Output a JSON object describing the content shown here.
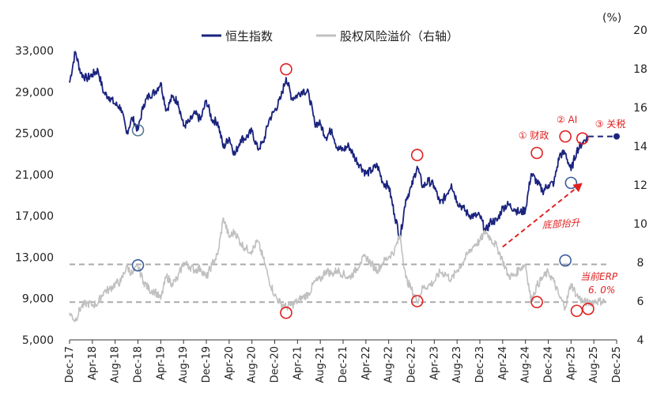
{
  "chart_data": {
    "type": "line",
    "y_unit_right": "(%)",
    "yticks_left": [
      "5,000",
      "9,000",
      "13,000",
      "17,000",
      "21,000",
      "25,000",
      "29,000",
      "33,000"
    ],
    "yticks_right": [
      "4",
      "6",
      "8",
      "10",
      "12",
      "14",
      "16",
      "18",
      "20"
    ],
    "ylim_left": [
      5000,
      35000
    ],
    "ylim_right": [
      4,
      20
    ],
    "x_ticks": [
      "Dec-17",
      "Apr-18",
      "Aug-18",
      "Dec-18",
      "Apr-19",
      "Aug-19",
      "Dec-19",
      "Apr-20",
      "Aug-20",
      "Dec-20",
      "Apr-21",
      "Aug-21",
      "Dec-21",
      "Apr-22",
      "Aug-22",
      "Dec-22",
      "Apr-23",
      "Aug-23",
      "Dec-23",
      "Apr-24",
      "Aug-24",
      "Dec-24",
      "Apr-25",
      "Aug-25",
      "Dec-25"
    ],
    "legend_position": "top-center",
    "series": [
      {
        "name": "恒生指数",
        "axis": "left",
        "color": "#1a237e",
        "points": [
          [
            "Dec-17",
            29900
          ],
          [
            "Jan-18",
            32900
          ],
          [
            "Feb-18",
            30800
          ],
          [
            "Mar-18",
            30300
          ],
          [
            "Apr-18",
            30700
          ],
          [
            "May-18",
            31100
          ],
          [
            "Jun-18",
            28900
          ],
          [
            "Jul-18",
            28500
          ],
          [
            "Aug-18",
            27800
          ],
          [
            "Sep-18",
            27500
          ],
          [
            "Oct-18",
            25000
          ],
          [
            "Nov-18",
            26500
          ],
          [
            "Dec-18",
            25300
          ],
          [
            "Jan-19",
            27800
          ],
          [
            "Feb-19",
            28700
          ],
          [
            "Mar-19",
            29000
          ],
          [
            "Apr-19",
            29900
          ],
          [
            "May-19",
            27200
          ],
          [
            "Jun-19",
            28500
          ],
          [
            "Jul-19",
            28100
          ],
          [
            "Aug-19",
            25700
          ],
          [
            "Sep-19",
            26100
          ],
          [
            "Oct-19",
            26900
          ],
          [
            "Nov-19",
            26300
          ],
          [
            "Dec-19",
            28200
          ],
          [
            "Jan-20",
            26300
          ],
          [
            "Feb-20",
            26100
          ],
          [
            "Mar-20",
            23600
          ],
          [
            "Apr-20",
            24600
          ],
          [
            "May-20",
            22900
          ],
          [
            "Jun-20",
            24400
          ],
          [
            "Jul-20",
            24600
          ],
          [
            "Aug-20",
            25200
          ],
          [
            "Sep-20",
            23500
          ],
          [
            "Oct-20",
            24100
          ],
          [
            "Nov-20",
            26300
          ],
          [
            "Dec-20",
            27200
          ],
          [
            "Jan-21",
            28300
          ],
          [
            "Feb-21",
            30400
          ],
          [
            "Mar-21",
            28400
          ],
          [
            "Apr-21",
            28700
          ],
          [
            "May-21",
            29200
          ],
          [
            "Jun-21",
            28800
          ],
          [
            "Jul-21",
            26000
          ],
          [
            "Aug-21",
            25900
          ],
          [
            "Sep-21",
            24600
          ],
          [
            "Oct-21",
            25400
          ],
          [
            "Nov-21",
            23500
          ],
          [
            "Dec-21",
            23400
          ],
          [
            "Jan-22",
            23800
          ],
          [
            "Feb-22",
            22700
          ],
          [
            "Mar-22",
            21900
          ],
          [
            "Apr-22",
            21100
          ],
          [
            "May-22",
            21400
          ],
          [
            "Jun-22",
            21900
          ],
          [
            "Jul-22",
            20200
          ],
          [
            "Aug-22",
            19900
          ],
          [
            "Sep-22",
            17200
          ],
          [
            "Oct-22",
            14900
          ],
          [
            "Nov-22",
            18600
          ],
          [
            "Dec-22",
            19800
          ],
          [
            "Jan-23",
            21800
          ],
          [
            "Feb-23",
            19800
          ],
          [
            "Mar-23",
            20400
          ],
          [
            "Apr-23",
            19900
          ],
          [
            "May-23",
            18200
          ],
          [
            "Jun-23",
            18900
          ],
          [
            "Jul-23",
            20100
          ],
          [
            "Aug-23",
            18400
          ],
          [
            "Sep-23",
            17800
          ],
          [
            "Oct-23",
            17100
          ],
          [
            "Nov-23",
            17000
          ],
          [
            "Dec-23",
            17000
          ],
          [
            "Jan-24",
            15500
          ],
          [
            "Feb-24",
            16500
          ],
          [
            "Mar-24",
            16500
          ],
          [
            "Apr-24",
            17800
          ],
          [
            "May-24",
            18100
          ],
          [
            "Jun-24",
            17700
          ],
          [
            "Jul-24",
            17300
          ],
          [
            "Aug-24",
            17600
          ],
          [
            "Sep-24",
            21100
          ],
          [
            "Oct-24",
            20300
          ],
          [
            "Nov-24",
            19400
          ],
          [
            "Dec-24",
            20000
          ],
          [
            "Jan-25",
            20200
          ],
          [
            "Feb-25",
            22900
          ],
          [
            "Mar-25",
            23100
          ],
          [
            "Apr-25",
            21400
          ],
          [
            "May-25",
            23300
          ],
          [
            "Jun-25",
            24100
          ],
          [
            "Jul-25",
            24700
          ]
        ]
      },
      {
        "name": "股权风险溢价（右轴）",
        "axis": "right",
        "color": "#c0c0c0",
        "points": [
          [
            "Dec-17",
            5.4
          ],
          [
            "Jan-18",
            5.0
          ],
          [
            "Feb-18",
            5.7
          ],
          [
            "Mar-18",
            5.9
          ],
          [
            "Apr-18",
            5.8
          ],
          [
            "May-18",
            5.9
          ],
          [
            "Jun-18",
            6.5
          ],
          [
            "Jul-18",
            6.6
          ],
          [
            "Aug-18",
            6.9
          ],
          [
            "Sep-18",
            7.0
          ],
          [
            "Oct-18",
            7.8
          ],
          [
            "Nov-18",
            7.4
          ],
          [
            "Dec-18",
            7.8
          ],
          [
            "Jan-19",
            7.0
          ],
          [
            "Feb-19",
            6.6
          ],
          [
            "Mar-19",
            6.5
          ],
          [
            "Apr-19",
            6.1
          ],
          [
            "May-19",
            7.3
          ],
          [
            "Jun-19",
            6.9
          ],
          [
            "Jul-19",
            7.2
          ],
          [
            "Aug-19",
            8.0
          ],
          [
            "Sep-19",
            7.8
          ],
          [
            "Oct-19",
            7.6
          ],
          [
            "Nov-19",
            7.7
          ],
          [
            "Dec-19",
            7.2
          ],
          [
            "Jan-20",
            7.9
          ],
          [
            "Feb-20",
            8.4
          ],
          [
            "Mar-20",
            10.3
          ],
          [
            "Apr-20",
            9.3
          ],
          [
            "May-20",
            9.6
          ],
          [
            "Jun-20",
            9.0
          ],
          [
            "Jul-20",
            8.7
          ],
          [
            "Aug-20",
            8.6
          ],
          [
            "Sep-20",
            9.1
          ],
          [
            "Oct-20",
            8.2
          ],
          [
            "Nov-20",
            7.1
          ],
          [
            "Dec-20",
            6.3
          ],
          [
            "Jan-21",
            5.9
          ],
          [
            "Feb-21",
            5.7
          ],
          [
            "Mar-21",
            5.8
          ],
          [
            "Apr-21",
            6.0
          ],
          [
            "May-21",
            6.2
          ],
          [
            "Jun-21",
            6.4
          ],
          [
            "Jul-21",
            7.0
          ],
          [
            "Aug-21",
            7.1
          ],
          [
            "Sep-21",
            7.6
          ],
          [
            "Oct-21",
            7.4
          ],
          [
            "Nov-21",
            7.6
          ],
          [
            "Dec-21",
            7.4
          ],
          [
            "Jan-22",
            7.2
          ],
          [
            "Feb-22",
            7.5
          ],
          [
            "Mar-22",
            8.0
          ],
          [
            "Apr-22",
            8.3
          ],
          [
            "May-22",
            7.9
          ],
          [
            "Jun-22",
            7.6
          ],
          [
            "Jul-22",
            8.0
          ],
          [
            "Aug-22",
            8.3
          ],
          [
            "Sep-22",
            8.6
          ],
          [
            "Oct-22",
            9.4
          ],
          [
            "Nov-22",
            7.2
          ],
          [
            "Dec-22",
            6.6
          ],
          [
            "Jan-23",
            6.0
          ],
          [
            "Feb-23",
            6.7
          ],
          [
            "Mar-23",
            6.8
          ],
          [
            "Apr-23",
            7.0
          ],
          [
            "May-23",
            7.5
          ],
          [
            "Jun-23",
            7.4
          ],
          [
            "Jul-23",
            7.1
          ],
          [
            "Aug-23",
            7.6
          ],
          [
            "Sep-23",
            8.0
          ],
          [
            "Oct-23",
            8.5
          ],
          [
            "Nov-23",
            8.9
          ],
          [
            "Dec-23",
            9.1
          ],
          [
            "Jan-24",
            9.6
          ],
          [
            "Feb-24",
            9.2
          ],
          [
            "Mar-24",
            8.8
          ],
          [
            "Apr-24",
            8.1
          ],
          [
            "May-24",
            7.3
          ],
          [
            "Jun-24",
            7.3
          ],
          [
            "Jul-24",
            7.7
          ],
          [
            "Aug-24",
            7.9
          ],
          [
            "Sep-24",
            6.0
          ],
          [
            "Oct-24",
            6.8
          ],
          [
            "Nov-24",
            7.2
          ],
          [
            "Dec-24",
            7.5
          ],
          [
            "Jan-25",
            7.0
          ],
          [
            "Feb-25",
            6.2
          ],
          [
            "Mar-25",
            5.7
          ],
          [
            "Apr-25",
            6.9
          ],
          [
            "May-25",
            6.3
          ],
          [
            "Jun-25",
            6.0
          ],
          [
            "Jul-25",
            5.9
          ],
          [
            "Aug-25",
            6.0
          ],
          [
            "Sep-25",
            6.0
          ],
          [
            "Oct-25",
            6.0
          ]
        ]
      }
    ],
    "forecast_hsi": {
      "style": "dashed",
      "color": "#1a237e",
      "from": [
        "Jul-25",
        24700
      ],
      "to": [
        "Dec-25",
        24700
      ]
    },
    "reference_lines": [
      {
        "axis": "right",
        "value": 7.9,
        "style": "dashed",
        "color": "#aaaaaa"
      },
      {
        "axis": "right",
        "value": 5.95,
        "style": "dashed",
        "color": "#aaaaaa"
      }
    ],
    "markers": [
      {
        "series": "恒生指数",
        "x": "Dec-18",
        "y": 25300,
        "color": "#557a95",
        "style": "circle"
      },
      {
        "series": "恒生指数",
        "x": "Feb-21",
        "y": 31200,
        "color": "#e02020",
        "style": "circle"
      },
      {
        "series": "恒生指数",
        "x": "Jan-23",
        "y": 22900,
        "color": "#e02020",
        "style": "circle"
      },
      {
        "series": "恒生指数",
        "x": "Oct-24",
        "y": 23100,
        "color": "#e02020",
        "style": "circle"
      },
      {
        "series": "恒生指数",
        "x": "Mar-25",
        "y": 24700,
        "color": "#e02020",
        "style": "circle"
      },
      {
        "series": "恒生指数",
        "x": "Jun-25",
        "y": 24500,
        "color": "#e02020",
        "style": "circle"
      },
      {
        "series": "恒生指数",
        "x": "Apr-25",
        "y": 20200,
        "color": "#3a5e9c",
        "style": "circle"
      },
      {
        "series": "股权风险溢价（右轴）",
        "x": "Dec-18",
        "y": 7.85,
        "color": "#3a5e9c",
        "style": "circle"
      },
      {
        "series": "股权风险溢价（右轴）",
        "x": "Feb-21",
        "y": 5.4,
        "color": "#e02020",
        "style": "circle"
      },
      {
        "series": "股权风险溢价（右轴）",
        "x": "Jan-23",
        "y": 6.0,
        "color": "#e02020",
        "style": "circle"
      },
      {
        "series": "股权风险溢价（右轴）",
        "x": "Oct-24",
        "y": 5.95,
        "color": "#e02020",
        "style": "circle"
      },
      {
        "series": "股权风险溢价（右轴）",
        "x": "Mar-25",
        "y": 8.1,
        "color": "#3a5e9c",
        "style": "circle"
      },
      {
        "series": "股权风险溢价（右轴）",
        "x": "May-25",
        "y": 5.5,
        "color": "#e02020",
        "style": "circle"
      },
      {
        "series": "股权风险溢价（右轴）",
        "x": "Jul-25",
        "y": 5.6,
        "color": "#e02020",
        "style": "circle"
      }
    ],
    "endpoint_dot": {
      "x": "Dec-25",
      "y": 24700,
      "color": "#1a237e"
    },
    "annotations": [
      {
        "text": "① 财政",
        "near": "Oct-24",
        "color": "#e02020"
      },
      {
        "text": "② AI",
        "near": "Mar-25",
        "color": "#e02020"
      },
      {
        "text": "③ 关税",
        "near": "Jun-25",
        "color": "#e02020"
      },
      {
        "text": "底部抬升",
        "color": "#e02020",
        "style": "italic"
      },
      {
        "text": "当前ERP",
        "color": "#e02020",
        "style": "italic"
      },
      {
        "text": "6. 0%",
        "color": "#e02020",
        "style": "italic"
      }
    ],
    "trend_arrow": {
      "from": [
        "Apr-24",
        8.8
      ],
      "to": [
        "Jun-25",
        12.1
      ],
      "color": "#e02020",
      "style": "dashed"
    }
  }
}
